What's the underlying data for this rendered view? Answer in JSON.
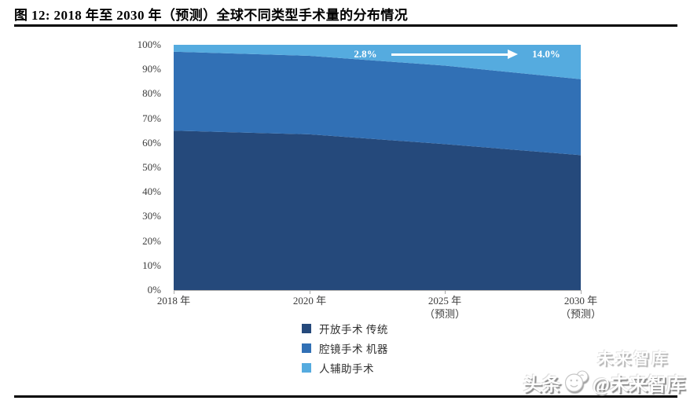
{
  "page": {
    "title": "图 12: 2018 年至 2030 年（预测）全球不同类型手术量的分布情况"
  },
  "chart_data": {
    "type": "area",
    "stacked": true,
    "title": "2018 年至 2030 年（预测）全球不同类型手术量的分布情况",
    "unit": "percent of global surgeries",
    "categories": [
      "2018 年",
      "2020 年",
      "2025 年（预测）",
      "2030 年（预测）"
    ],
    "x_tick_lines": [
      [
        "2018 年",
        ""
      ],
      [
        "2020 年",
        ""
      ],
      [
        "2025 年",
        "（预测）"
      ],
      [
        "2030 年",
        "（预测）"
      ]
    ],
    "ylim": [
      0,
      100
    ],
    "y_tick_labels": [
      "100%",
      "90%",
      "80%",
      "70%",
      "60%",
      "50%",
      "40%",
      "30%",
      "20%",
      "10%",
      "0%"
    ],
    "grid": false,
    "legend_position": "bottom",
    "series": [
      {
        "name": "开放手术 传统",
        "color": "#25497B",
        "values": [
          65.0,
          63.5,
          59.5,
          55.0
        ]
      },
      {
        "name": "腔镜手术 机器",
        "color": "#3170B5",
        "values": [
          32.2,
          32.0,
          32.0,
          31.0
        ]
      },
      {
        "name": "人辅助手术",
        "color": "#55ABDF",
        "values": [
          2.8,
          4.5,
          8.5,
          14.0
        ]
      }
    ],
    "annotation": {
      "series": "人辅助手术",
      "start_label": "2.8%",
      "end_label": "14.0%"
    }
  },
  "watermark": {
    "ghost_text": "未来智库",
    "prefix": "头条",
    "suffix": "@未来智库"
  }
}
